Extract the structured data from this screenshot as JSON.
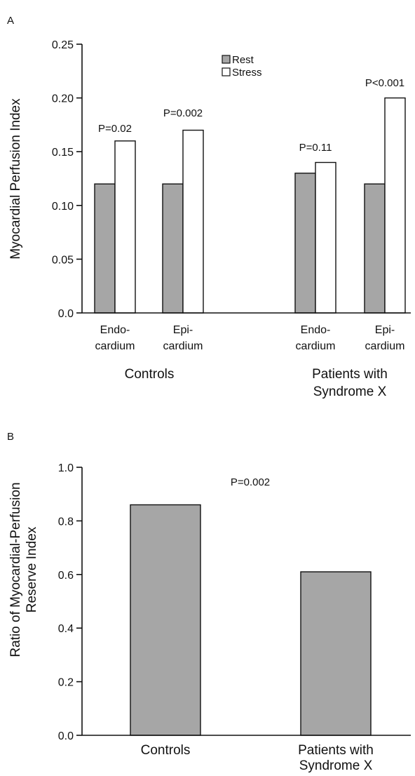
{
  "chart_data": [
    {
      "panel": "A",
      "type": "bar",
      "ylabel": "Myocardial Perfusion Index",
      "ylim": [
        0.0,
        0.25
      ],
      "yticks": [
        "0.0",
        "0.05",
        "0.10",
        "0.15",
        "0.20",
        "0.25"
      ],
      "legend": {
        "position": "top-center",
        "entries": [
          "Rest",
          "Stress"
        ]
      },
      "colors": {
        "Rest": "#a6a6a6",
        "Stress": "#ffffff"
      },
      "categories": [
        {
          "line1": "Endo-",
          "line2": "cardium",
          "group": "Controls"
        },
        {
          "line1": "Epi-",
          "line2": "cardium",
          "group": "Controls"
        },
        {
          "line1": "Endo-",
          "line2": "cardium",
          "group": "Patients with Syndrome X"
        },
        {
          "line1": "Epi-",
          "line2": "cardium",
          "group": "Patients with Syndrome X"
        }
      ],
      "groups": [
        {
          "line1": "Controls",
          "line2": ""
        },
        {
          "line1": "Patients with",
          "line2": "Syndrome X"
        }
      ],
      "series": [
        {
          "name": "Rest",
          "values": [
            0.12,
            0.12,
            0.13,
            0.12
          ]
        },
        {
          "name": "Stress",
          "values": [
            0.16,
            0.17,
            0.14,
            0.2
          ]
        }
      ],
      "annotations": [
        "P=0.02",
        "P=0.002",
        "P=0.11",
        "P<0.001"
      ]
    },
    {
      "panel": "B",
      "type": "bar",
      "ylabel_line1": "Ratio of Myocardial-Perfusion",
      "ylabel_line2": "Reserve Index",
      "ylim": [
        0.0,
        1.0
      ],
      "yticks": [
        "0.0",
        "0.2",
        "0.4",
        "0.6",
        "0.8",
        "1.0"
      ],
      "categories": [
        {
          "line1": "Controls",
          "line2": ""
        },
        {
          "line1": "Patients with",
          "line2": "Syndrome X"
        }
      ],
      "values": [
        0.86,
        0.61
      ],
      "color": "#a6a6a6",
      "annotations": [
        "P=0.002"
      ]
    }
  ]
}
